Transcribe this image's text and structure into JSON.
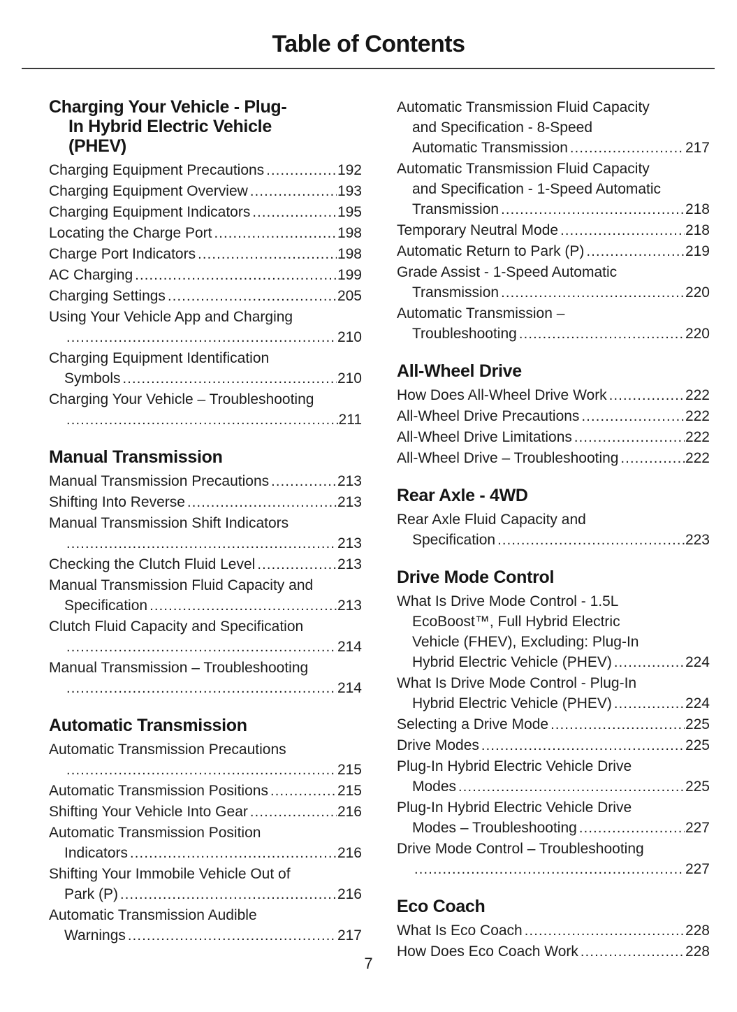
{
  "page": {
    "title": "Table of Contents",
    "footer_page_number": "7",
    "text_color": "#1c1c1c",
    "background_color": "#ffffff",
    "rule_color": "#3a3a3a"
  },
  "columns": [
    {
      "sections": [
        {
          "heading_lines": [
            "Charging Your Vehicle - Plug-",
            "In Hybrid Electric Vehicle",
            "(PHEV)"
          ],
          "entries": [
            {
              "lines": [
                "Charging Equipment Precautions"
              ],
              "page": "192"
            },
            {
              "lines": [
                "Charging Equipment Overview"
              ],
              "page": "193"
            },
            {
              "lines": [
                "Charging Equipment Indicators"
              ],
              "page": "195"
            },
            {
              "lines": [
                "Locating the Charge Port"
              ],
              "page": "198"
            },
            {
              "lines": [
                "Charge Port Indicators"
              ],
              "page": "198"
            },
            {
              "lines": [
                "AC Charging"
              ],
              "page": "199"
            },
            {
              "lines": [
                "Charging Settings"
              ],
              "page": "205"
            },
            {
              "lines": [
                "Using Your Vehicle App and Charging",
                ""
              ],
              "page": "210"
            },
            {
              "lines": [
                "Charging Equipment Identification",
                "Symbols"
              ],
              "page": "210"
            },
            {
              "lines": [
                "Charging Your Vehicle – Troubleshooting",
                ""
              ],
              "page": "211"
            }
          ]
        },
        {
          "heading_lines": [
            "Manual Transmission"
          ],
          "entries": [
            {
              "lines": [
                "Manual Transmission Precautions"
              ],
              "page": "213"
            },
            {
              "lines": [
                "Shifting Into Reverse"
              ],
              "page": "213"
            },
            {
              "lines": [
                "Manual Transmission Shift Indicators",
                ""
              ],
              "page": "213"
            },
            {
              "lines": [
                "Checking the Clutch Fluid Level"
              ],
              "page": "213"
            },
            {
              "lines": [
                "Manual Transmission Fluid Capacity and",
                "Specification"
              ],
              "page": "213"
            },
            {
              "lines": [
                "Clutch Fluid Capacity and Specification",
                ""
              ],
              "page": "214"
            },
            {
              "lines": [
                "Manual Transmission – Troubleshooting",
                ""
              ],
              "page": "214"
            }
          ]
        },
        {
          "heading_lines": [
            "Automatic Transmission"
          ],
          "entries": [
            {
              "lines": [
                "Automatic Transmission Precautions",
                ""
              ],
              "page": "215"
            },
            {
              "lines": [
                "Automatic Transmission Positions"
              ],
              "page": "215"
            },
            {
              "lines": [
                "Shifting Your Vehicle Into Gear"
              ],
              "page": "216"
            },
            {
              "lines": [
                "Automatic Transmission Position",
                "Indicators"
              ],
              "page": "216"
            },
            {
              "lines": [
                "Shifting Your Immobile Vehicle Out of",
                "Park (P)"
              ],
              "page": "216"
            },
            {
              "lines": [
                "Automatic Transmission Audible",
                "Warnings"
              ],
              "page": "217"
            }
          ]
        }
      ]
    },
    {
      "sections": [
        {
          "heading_lines": [],
          "entries": [
            {
              "lines": [
                "Automatic Transmission Fluid Capacity",
                "and Specification - 8-Speed",
                "Automatic Transmission"
              ],
              "page": "217"
            },
            {
              "lines": [
                "Automatic Transmission Fluid Capacity",
                "and Specification - 1-Speed Automatic",
                "Transmission"
              ],
              "page": "218"
            },
            {
              "lines": [
                "Temporary Neutral Mode"
              ],
              "page": "218"
            },
            {
              "lines": [
                "Automatic Return to Park (P)"
              ],
              "page": "219"
            },
            {
              "lines": [
                "Grade Assist - 1-Speed Automatic",
                "Transmission"
              ],
              "page": "220"
            },
            {
              "lines": [
                "Automatic Transmission –",
                "Troubleshooting"
              ],
              "page": "220"
            }
          ]
        },
        {
          "heading_lines": [
            "All-Wheel Drive"
          ],
          "entries": [
            {
              "lines": [
                "How Does All-Wheel Drive Work"
              ],
              "page": "222"
            },
            {
              "lines": [
                "All-Wheel Drive Precautions"
              ],
              "page": "222"
            },
            {
              "lines": [
                "All-Wheel Drive Limitations"
              ],
              "page": "222"
            },
            {
              "lines": [
                "All-Wheel Drive – Troubleshooting"
              ],
              "page": "222"
            }
          ]
        },
        {
          "heading_lines": [
            "Rear Axle - 4WD"
          ],
          "entries": [
            {
              "lines": [
                "Rear Axle Fluid Capacity and",
                "Specification"
              ],
              "page": "223"
            }
          ]
        },
        {
          "heading_lines": [
            "Drive Mode Control"
          ],
          "entries": [
            {
              "lines": [
                "What Is Drive Mode Control - 1.5L",
                "EcoBoost™, Full Hybrid Electric",
                "Vehicle (FHEV), Excluding: Plug-In",
                "Hybrid Electric Vehicle (PHEV)"
              ],
              "page": "224"
            },
            {
              "lines": [
                "What Is Drive Mode Control - Plug-In",
                "Hybrid Electric Vehicle (PHEV)"
              ],
              "page": "224"
            },
            {
              "lines": [
                "Selecting a Drive Mode"
              ],
              "page": "225"
            },
            {
              "lines": [
                "Drive Modes"
              ],
              "page": "225"
            },
            {
              "lines": [
                "Plug-In Hybrid Electric Vehicle Drive",
                "Modes"
              ],
              "page": "225"
            },
            {
              "lines": [
                "Plug-In Hybrid Electric Vehicle Drive",
                "Modes – Troubleshooting"
              ],
              "page": "227"
            },
            {
              "lines": [
                "Drive Mode Control – Troubleshooting",
                ""
              ],
              "page": "227"
            }
          ]
        },
        {
          "heading_lines": [
            "Eco Coach"
          ],
          "entries": [
            {
              "lines": [
                "What Is Eco Coach"
              ],
              "page": "228"
            },
            {
              "lines": [
                "How Does Eco Coach Work"
              ],
              "page": "228"
            }
          ]
        }
      ]
    }
  ]
}
